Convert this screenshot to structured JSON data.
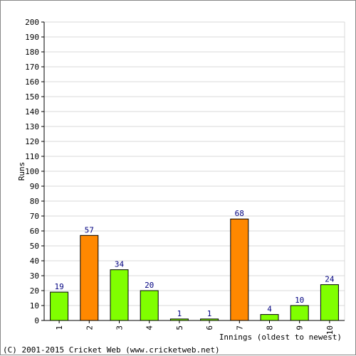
{
  "chart_data": {
    "type": "bar",
    "categories": [
      "1",
      "2",
      "3",
      "4",
      "5",
      "6",
      "7",
      "8",
      "9",
      "10"
    ],
    "values": [
      19,
      57,
      34,
      20,
      1,
      1,
      68,
      4,
      10,
      24
    ],
    "bar_colors": [
      "#80ff00",
      "#ff8800",
      "#80ff00",
      "#80ff00",
      "#80ff00",
      "#80ff00",
      "#ff8800",
      "#80ff00",
      "#80ff00",
      "#80ff00"
    ],
    "xlabel": "Innings (oldest to newest)",
    "ylabel": "Runs",
    "ylim": [
      0,
      200
    ],
    "yticks": [
      0,
      10,
      20,
      30,
      40,
      50,
      60,
      70,
      80,
      90,
      100,
      110,
      120,
      130,
      140,
      150,
      160,
      170,
      180,
      190,
      200
    ],
    "grid": true,
    "data_label_color": "#000080"
  },
  "footer": {
    "copyright": "(C) 2001-2015 Cricket Web (www.cricketweb.net)"
  }
}
